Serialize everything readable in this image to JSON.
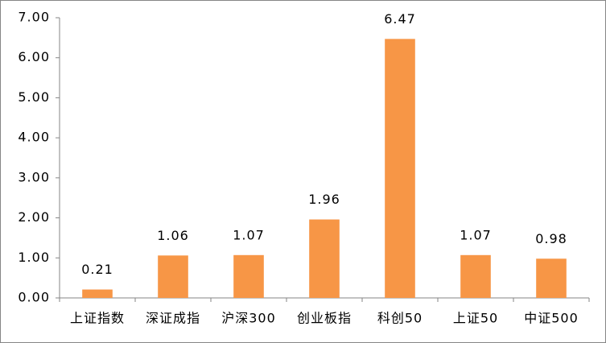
{
  "chart_data": {
    "type": "bar",
    "categories": [
      "上证指数",
      "深证成指",
      "沪深300",
      "创业板指",
      "科创50",
      "上证50",
      "中证500"
    ],
    "values": [
      0.21,
      1.06,
      1.07,
      1.96,
      6.47,
      1.07,
      0.98
    ],
    "color": "#f79646",
    "ylim": [
      0,
      7
    ],
    "yticks": [
      {
        "value": 0,
        "label": "0.00"
      },
      {
        "value": 1,
        "label": "1.00"
      },
      {
        "value": 2,
        "label": "2.00"
      },
      {
        "value": 3,
        "label": "3.00"
      },
      {
        "value": 4,
        "label": "4.00"
      },
      {
        "value": 5,
        "label": "5.00"
      },
      {
        "value": 6,
        "label": "6.00"
      },
      {
        "value": 7,
        "label": "7.00"
      }
    ],
    "grid": false
  }
}
